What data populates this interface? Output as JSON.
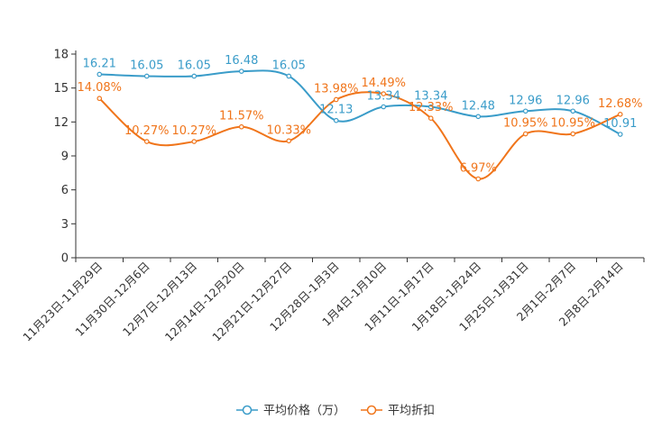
{
  "chart_data": {
    "type": "line",
    "title": "",
    "xlabel": "",
    "ylabel": "",
    "ylim": [
      0,
      18
    ],
    "yticks": [
      0,
      3,
      6,
      9,
      12,
      15,
      18
    ],
    "ytick_labels": [
      "0",
      "3",
      "6",
      "9",
      "12",
      "15",
      "18"
    ],
    "grid": false,
    "legend_position": "bottom-center",
    "categories": [
      "11月23日-11月29日",
      "11月30日-12月6日",
      "12月7日-12月13日",
      "12月14日-12月20日",
      "12月21日-12月27日",
      "12月28日-1月3日",
      "1月4日-1月10日",
      "1月11日-1月17日",
      "1月18日-1月24日",
      "1月25日-1月31日",
      "2月1日-2月7日",
      "2月8日-2月14日"
    ],
    "series": [
      {
        "name": "平均价格（万）",
        "color": "#3a9cc9",
        "values": [
          16.21,
          16.05,
          16.05,
          16.48,
          16.05,
          12.13,
          13.34,
          13.34,
          12.48,
          12.96,
          12.96,
          10.91
        ],
        "labels": [
          "16.21",
          "16.05",
          "16.05",
          "16.48",
          "16.05",
          "12.13",
          "13.34",
          "13.34",
          "12.48",
          "12.96",
          "12.96",
          "10.91"
        ]
      },
      {
        "name": "平均折扣",
        "color": "#f0751b",
        "values": [
          14.08,
          10.27,
          10.27,
          11.57,
          10.33,
          13.98,
          14.49,
          12.33,
          6.97,
          10.95,
          10.95,
          12.68
        ],
        "labels": [
          "14.08%",
          "10.27%",
          "10.27%",
          "11.57%",
          "10.33%",
          "13.98%",
          "14.49%",
          "12.33%",
          "6.97%",
          "10.95%",
          "10.95%",
          "12.68%"
        ]
      }
    ]
  }
}
